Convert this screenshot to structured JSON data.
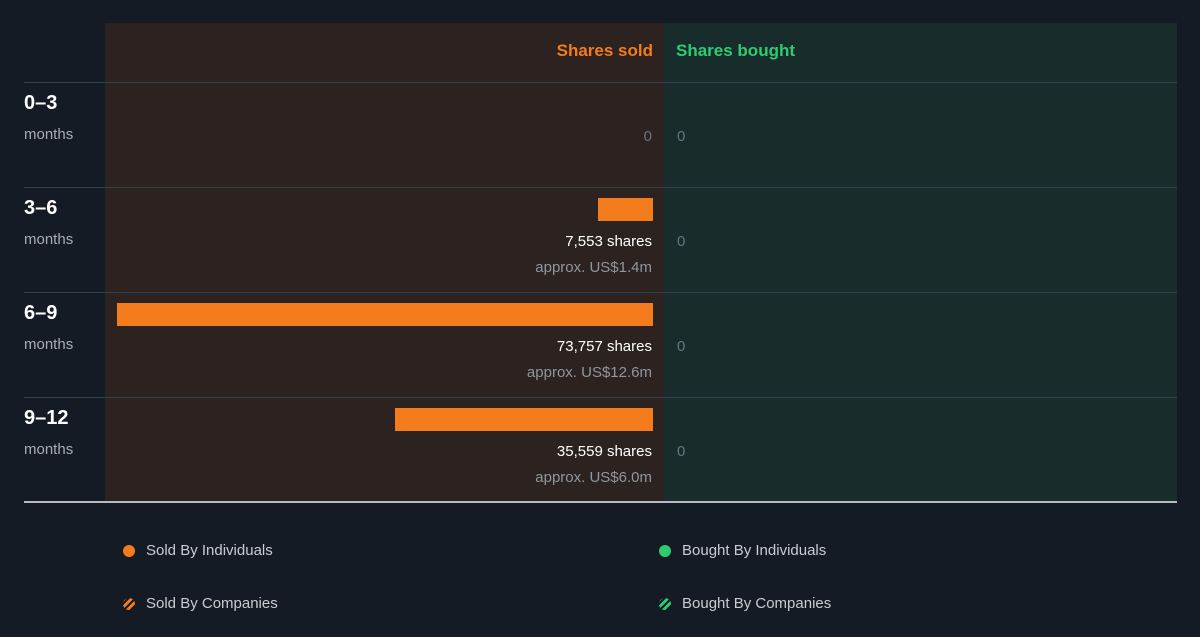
{
  "headers": {
    "sold": "Shares sold",
    "bought": "Shares bought"
  },
  "chart_data": {
    "type": "bar",
    "categories": [
      "0–3 months",
      "3–6 months",
      "6–9 months",
      "9–12 months"
    ],
    "series": [
      {
        "name": "Shares sold",
        "values": [
          0,
          7553,
          73757,
          35559
        ]
      },
      {
        "name": "Shares bought",
        "values": [
          0,
          0,
          0,
          0
        ]
      }
    ]
  },
  "rows": [
    {
      "period": "0–3",
      "unit": "months",
      "sold_value": 0,
      "sold_zero": "0",
      "shares": "",
      "approx": "",
      "bought": "0"
    },
    {
      "period": "3–6",
      "unit": "months",
      "sold_value": 7553,
      "sold_zero": "",
      "shares": "7,553 shares",
      "approx": "approx. US$1.4m",
      "bought": "0"
    },
    {
      "period": "6–9",
      "unit": "months",
      "sold_value": 73757,
      "sold_zero": "",
      "shares": "73,757 shares",
      "approx": "approx. US$12.6m",
      "bought": "0"
    },
    {
      "period": "9–12",
      "unit": "months",
      "sold_value": 35559,
      "sold_zero": "",
      "shares": "35,559 shares",
      "approx": "approx. US$6.0m",
      "bought": "0"
    }
  ],
  "legend": [
    {
      "label": "Sold By Individuals",
      "marker": "dot",
      "color": "#f57c1c"
    },
    {
      "label": "Bought By Individuals",
      "marker": "dot",
      "color": "#2ecc71"
    },
    {
      "label": "Sold By Companies",
      "marker": "hatch",
      "color": "#f57c1c"
    },
    {
      "label": "Bought By Companies",
      "marker": "hatch",
      "color": "#2ecc71"
    }
  ],
  "colors": {
    "sold": "#f57c1c",
    "bought": "#2ecc71"
  }
}
